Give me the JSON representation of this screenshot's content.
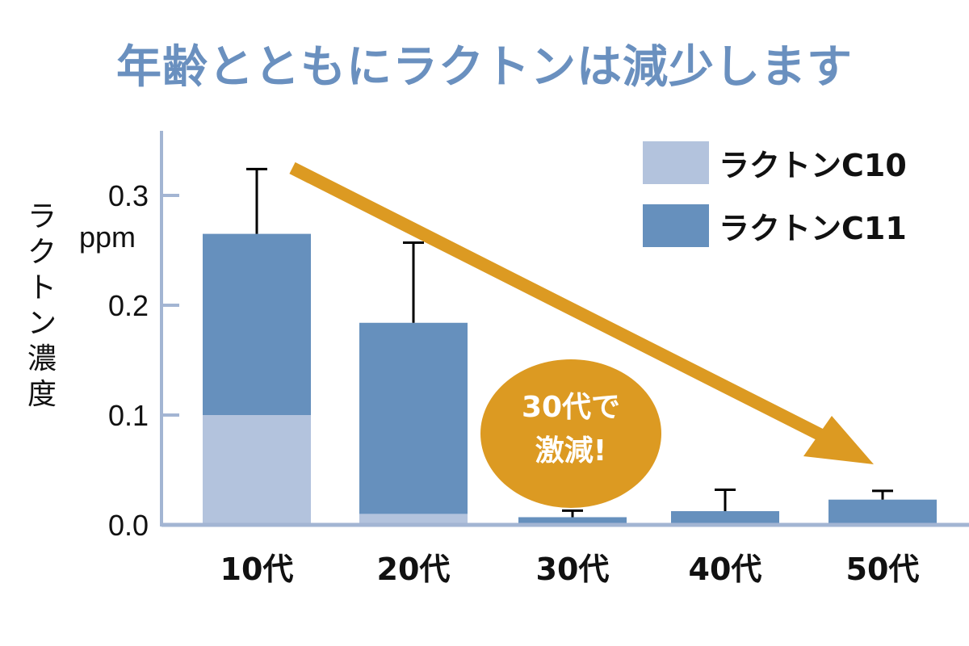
{
  "chart_data": {
    "type": "bar",
    "stacked": true,
    "title": "年齢とともにラクトンは減少します",
    "ylabel": "ラクトン濃度",
    "yunit": "ppm",
    "xlabel": "",
    "categories": [
      "10代",
      "20代",
      "30代",
      "40代",
      "50代"
    ],
    "ylim": [
      0,
      0.35
    ],
    "yticks": [
      "0.0",
      "0.1",
      "0.2",
      "0.3"
    ],
    "ytick_values": [
      0,
      0.1,
      0.2,
      0.3
    ],
    "series": [
      {
        "name": "ラクトンC10",
        "color": "#b3c3dd",
        "values": [
          0.1,
          0.01,
          0.0,
          0.0,
          0.0
        ]
      },
      {
        "name": "ラクトンC11",
        "color": "#6690bd",
        "values": [
          0.165,
          0.174,
          0.007,
          0.0125,
          0.023
        ]
      }
    ],
    "error_tops": [
      0.324,
      0.257,
      0.013,
      0.032,
      0.031
    ],
    "legend": "top-right",
    "annotation": {
      "line1": "30代で",
      "line2": "激減!",
      "color": "#dc9a22"
    },
    "trend_arrow_color": "#dc9a22",
    "axis_color": "#a3b5d3"
  }
}
